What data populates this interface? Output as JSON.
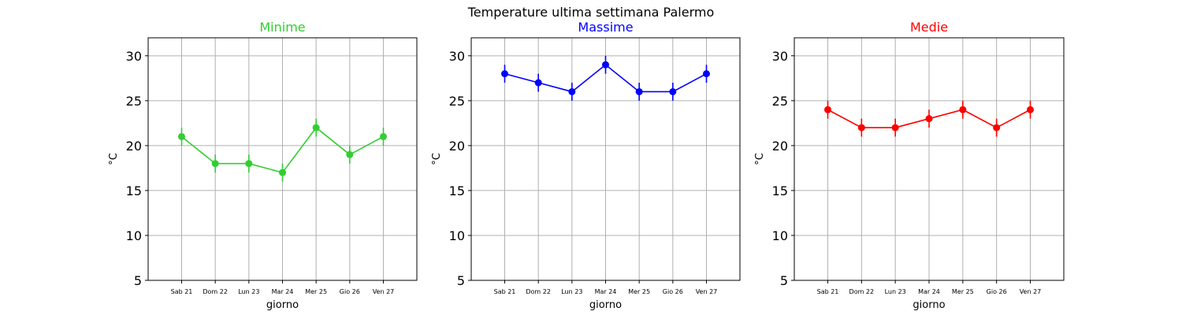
{
  "suptitle": "Temperature ultima settimana Palermo",
  "chart_data": [
    {
      "type": "line",
      "title": "Minime",
      "color": "#32cd32",
      "xlabel": "giorno",
      "ylabel": "°C",
      "ylim": [
        5,
        32
      ],
      "yticks": [
        5,
        10,
        15,
        20,
        25,
        30
      ],
      "grid": true,
      "categories": [
        "Sab 21",
        "Dom 22",
        "Lun 23",
        "Mar 24",
        "Mer 25",
        "Gio 26",
        "Ven 27"
      ],
      "values": [
        21,
        18,
        18,
        17,
        22,
        19,
        21
      ],
      "error": 1
    },
    {
      "type": "line",
      "title": "Massime",
      "color": "#0000ff",
      "xlabel": "giorno",
      "ylabel": "°C",
      "ylim": [
        5,
        32
      ],
      "yticks": [
        5,
        10,
        15,
        20,
        25,
        30
      ],
      "grid": true,
      "categories": [
        "Sab 21",
        "Dom 22",
        "Lun 23",
        "Mar 24",
        "Mer 25",
        "Gio 26",
        "Ven 27"
      ],
      "values": [
        28,
        27,
        26,
        29,
        26,
        26,
        28
      ],
      "error": 1
    },
    {
      "type": "line",
      "title": "Medie",
      "color": "#ff0000",
      "xlabel": "giorno",
      "ylabel": "°C",
      "ylim": [
        5,
        32
      ],
      "yticks": [
        5,
        10,
        15,
        20,
        25,
        30
      ],
      "grid": true,
      "categories": [
        "Sab 21",
        "Dom 22",
        "Lun 23",
        "Mar 24",
        "Mer 25",
        "Gio 26",
        "Ven 27"
      ],
      "values": [
        24,
        22,
        22,
        23,
        24,
        22,
        24
      ],
      "error": 1
    }
  ]
}
